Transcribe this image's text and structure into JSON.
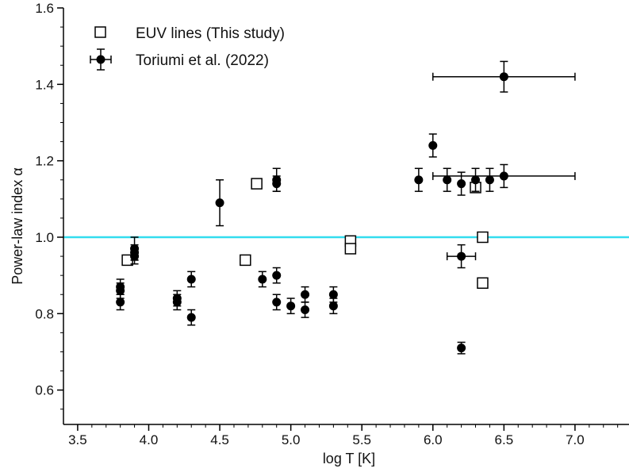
{
  "chart_data": {
    "type": "scatter",
    "title": "",
    "xlabel": "log T [K]",
    "ylabel": "Power-law index α",
    "xlim": [
      3.4,
      7.38
    ],
    "ylim": [
      0.51,
      1.6
    ],
    "xticks": [
      3.5,
      4.0,
      4.5,
      5.0,
      5.5,
      6.0,
      6.5,
      7.0
    ],
    "yticks": [
      0.6,
      0.8,
      1.0,
      1.2,
      1.4,
      1.6
    ],
    "grid": false,
    "legend_position": "top-left",
    "reference_line": {
      "y": 1.0,
      "color": "#33ddee"
    },
    "series": [
      {
        "name": "EUV lines (This study)",
        "marker": "open-square",
        "color": "#000000",
        "points": [
          {
            "x": 3.85,
            "y": 0.94
          },
          {
            "x": 4.68,
            "y": 0.94
          },
          {
            "x": 4.76,
            "y": 1.14
          },
          {
            "x": 5.42,
            "y": 0.99
          },
          {
            "x": 5.42,
            "y": 0.97
          },
          {
            "x": 6.3,
            "y": 1.13
          },
          {
            "x": 6.35,
            "y": 1.0
          },
          {
            "x": 6.35,
            "y": 0.88
          }
        ]
      },
      {
        "name": "Toriumi et al. (2022)",
        "marker": "filled-circle-errorbar",
        "color": "#000000",
        "points": [
          {
            "x": 3.8,
            "y": 0.87,
            "yerr": 0.02
          },
          {
            "x": 3.8,
            "y": 0.86,
            "yerr": 0.02
          },
          {
            "x": 3.8,
            "y": 0.83,
            "yerr": 0.02
          },
          {
            "x": 3.9,
            "y": 0.97,
            "yerr": 0.03
          },
          {
            "x": 3.9,
            "y": 0.96,
            "yerr": 0.02
          },
          {
            "x": 3.9,
            "y": 0.95,
            "yerr": 0.02
          },
          {
            "x": 4.2,
            "y": 0.84,
            "yerr": 0.02
          },
          {
            "x": 4.2,
            "y": 0.83,
            "yerr": 0.02
          },
          {
            "x": 4.3,
            "y": 0.89,
            "yerr": 0.02
          },
          {
            "x": 4.3,
            "y": 0.79,
            "yerr": 0.02
          },
          {
            "x": 4.5,
            "y": 1.09,
            "yerr": 0.06
          },
          {
            "x": 4.8,
            "y": 0.89,
            "yerr": 0.02
          },
          {
            "x": 4.9,
            "y": 1.15,
            "yerr": 0.03
          },
          {
            "x": 4.9,
            "y": 1.14,
            "yerr": 0.02
          },
          {
            "x": 4.9,
            "y": 0.9,
            "yerr": 0.02
          },
          {
            "x": 4.9,
            "y": 0.83,
            "yerr": 0.02
          },
          {
            "x": 5.0,
            "y": 0.82,
            "yerr": 0.02
          },
          {
            "x": 5.1,
            "y": 0.85,
            "yerr": 0.02
          },
          {
            "x": 5.1,
            "y": 0.81,
            "yerr": 0.02
          },
          {
            "x": 5.3,
            "y": 0.85,
            "yerr": 0.02
          },
          {
            "x": 5.3,
            "y": 0.82,
            "yerr": 0.02
          },
          {
            "x": 5.9,
            "y": 1.15,
            "yerr": 0.03
          },
          {
            "x": 6.0,
            "y": 1.24,
            "yerr": 0.03
          },
          {
            "x": 6.1,
            "y": 1.15,
            "yerr": 0.03
          },
          {
            "x": 6.2,
            "y": 1.14,
            "yerr": 0.03
          },
          {
            "x": 6.2,
            "y": 0.95,
            "yerr": 0.03,
            "xerr": 0.1
          },
          {
            "x": 6.2,
            "y": 0.71,
            "yerr": 0.015
          },
          {
            "x": 6.3,
            "y": 1.15,
            "yerr": 0.03
          },
          {
            "x": 6.4,
            "y": 1.15,
            "yerr": 0.03
          },
          {
            "x": 6.5,
            "y": 1.42,
            "yerr": 0.04,
            "xerr": 0.5
          },
          {
            "x": 6.5,
            "y": 1.16,
            "yerr": 0.03,
            "xerr": 0.5
          }
        ]
      }
    ]
  }
}
